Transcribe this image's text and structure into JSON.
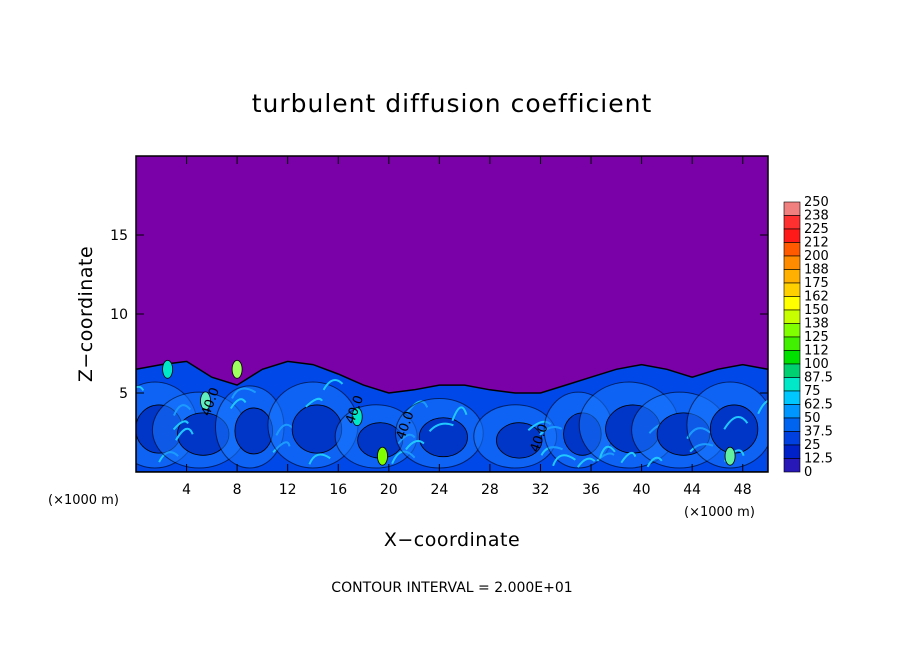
{
  "chart_data": {
    "type": "heatmap",
    "title": "turbulent diffusion coefficient",
    "xlabel": "X−coordinate",
    "ylabel": "Z−coordinate",
    "x_unit": "(×1000 m)",
    "xlim": [
      0,
      50
    ],
    "ylim": [
      0,
      20
    ],
    "x_ticks": [
      4,
      8,
      12,
      16,
      20,
      24,
      28,
      32,
      36,
      40,
      44,
      48
    ],
    "y_ticks": [
      5,
      10,
      15
    ],
    "contour_interval_text": "CONTOUR INTERVAL = 2.000E+01",
    "contour_labels": [
      "40.0",
      "40.0",
      "40.0",
      "40.0"
    ],
    "colorbar": {
      "min": 0,
      "max": 250,
      "labels": [
        "250",
        "238",
        "225",
        "212",
        "200",
        "188",
        "175",
        "162",
        "150",
        "138",
        "125",
        "112",
        "100",
        "87.5",
        "75",
        "62.5",
        "50",
        "37.5",
        "25",
        "12.5",
        "0"
      ],
      "colors": [
        "#f08080",
        "#ff3030",
        "#ff1a1a",
        "#ff5a00",
        "#ff8c00",
        "#ffb000",
        "#ffd000",
        "#ffff00",
        "#c8ff00",
        "#80ff00",
        "#40f000",
        "#00e000",
        "#00d070",
        "#00e8c8",
        "#00c8ff",
        "#0096ff",
        "#0064f0",
        "#0040e0",
        "#0020c8",
        "#2818b8",
        "#7a00a8"
      ]
    },
    "field": {
      "background_value": 0,
      "boundary_layer_top_z_km": [
        6.5,
        6.8,
        7.0,
        6.0,
        5.5,
        6.5,
        7.0,
        6.8,
        6.2,
        5.5,
        5.0,
        5.2,
        5.5,
        5.5,
        5.2,
        5.0,
        5.0,
        5.5,
        6.0,
        6.5,
        6.8,
        6.5,
        6.0,
        6.5,
        6.8,
        6.5
      ],
      "typical_value_in_layer": 37.5
    }
  }
}
